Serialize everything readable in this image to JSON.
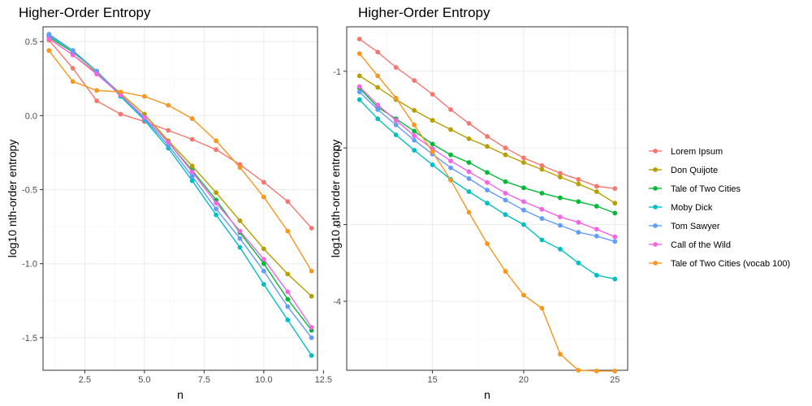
{
  "chart_data": [
    {
      "type": "line",
      "title": "Higher-Order Entropy",
      "xlabel": "n",
      "ylabel": "log10 nth-order entropy",
      "xlim": [
        0.75,
        12.25
      ],
      "ylim": [
        -1.72,
        0.6
      ],
      "xticks": [
        2.5,
        5.0,
        7.5,
        10.0,
        12.5
      ],
      "xtick_labels": [
        "2.5",
        "5.0",
        "7.5",
        "10.0",
        "12.5"
      ],
      "yticks": [
        0.5,
        0.0,
        -0.5,
        -1.0,
        -1.5
      ],
      "ytick_labels": [
        "0.5",
        "0.0",
        "-0.5",
        "-1.0",
        "-1.5"
      ],
      "grid": true,
      "x": [
        1,
        2,
        3,
        4,
        5,
        6,
        7,
        8,
        9,
        10,
        11,
        12
      ],
      "series": [
        {
          "name": "Lorem Ipsum",
          "values": [
            0.51,
            0.32,
            0.1,
            0.01,
            -0.04,
            -0.1,
            -0.16,
            -0.23,
            -0.33,
            -0.45,
            -0.58,
            -0.76
          ]
        },
        {
          "name": "Don Quijote",
          "values": [
            0.52,
            0.41,
            0.29,
            0.15,
            0.01,
            -0.17,
            -0.34,
            -0.52,
            -0.71,
            -0.9,
            -1.07,
            -1.22
          ]
        },
        {
          "name": "Tale of Two Cities",
          "values": [
            0.53,
            0.43,
            0.3,
            0.14,
            -0.01,
            -0.18,
            -0.37,
            -0.57,
            -0.79,
            -1.0,
            -1.24,
            -1.45
          ]
        },
        {
          "name": "Moby Dick",
          "values": [
            0.54,
            0.44,
            0.3,
            0.13,
            -0.03,
            -0.22,
            -0.44,
            -0.67,
            -0.89,
            -1.14,
            -1.38,
            -1.62
          ]
        },
        {
          "name": "Tom Sawyer",
          "values": [
            0.55,
            0.44,
            0.3,
            0.14,
            -0.02,
            -0.2,
            -0.41,
            -0.63,
            -0.83,
            -1.05,
            -1.29,
            -1.5
          ]
        },
        {
          "name": "Call of the Wild",
          "values": [
            0.52,
            0.41,
            0.28,
            0.14,
            -0.01,
            -0.18,
            -0.38,
            -0.59,
            -0.78,
            -0.97,
            -1.19,
            -1.43
          ]
        },
        {
          "name": "Tale of Two Cities (vocab 100)",
          "values": [
            0.44,
            0.23,
            0.17,
            0.16,
            0.13,
            0.07,
            -0.02,
            -0.17,
            -0.35,
            -0.55,
            -0.78,
            -1.05
          ]
        }
      ]
    },
    {
      "type": "line",
      "title": "Higher-Order Entropy",
      "xlabel": "n",
      "ylabel": "log10 nth-order entropy",
      "xlim": [
        10.3,
        25.7
      ],
      "ylim": [
        -4.9,
        -0.42
      ],
      "xticks": [
        15,
        20,
        25
      ],
      "xtick_labels": [
        "15",
        "20",
        "25"
      ],
      "yticks": [
        -1,
        -2,
        -3,
        -4
      ],
      "ytick_labels": [
        "-1",
        "-2",
        "-3",
        "-4"
      ],
      "grid": true,
      "x": [
        11,
        12,
        13,
        14,
        15,
        16,
        17,
        18,
        19,
        20,
        21,
        22,
        23,
        24,
        25
      ],
      "series": [
        {
          "name": "Lorem Ipsum",
          "values": [
            -0.58,
            -0.75,
            -0.95,
            -1.12,
            -1.3,
            -1.5,
            -1.68,
            -1.85,
            -2.0,
            -2.13,
            -2.23,
            -2.33,
            -2.41,
            -2.5,
            -2.53
          ]
        },
        {
          "name": "Don Quijote",
          "values": [
            -1.06,
            -1.21,
            -1.37,
            -1.51,
            -1.64,
            -1.76,
            -1.88,
            -1.98,
            -2.09,
            -2.19,
            -2.28,
            -2.38,
            -2.47,
            -2.57,
            -2.72
          ]
        },
        {
          "name": "Tale of Two Cities",
          "values": [
            -1.22,
            -1.47,
            -1.62,
            -1.78,
            -1.95,
            -2.09,
            -2.19,
            -2.32,
            -2.44,
            -2.52,
            -2.59,
            -2.65,
            -2.7,
            -2.76,
            -2.85
          ]
        },
        {
          "name": "Moby Dick",
          "values": [
            -1.37,
            -1.62,
            -1.83,
            -2.03,
            -2.22,
            -2.41,
            -2.57,
            -2.72,
            -2.87,
            -3.0,
            -3.2,
            -3.32,
            -3.5,
            -3.66,
            -3.71
          ]
        },
        {
          "name": "Tom Sawyer",
          "values": [
            -1.27,
            -1.5,
            -1.7,
            -1.9,
            -2.08,
            -2.26,
            -2.4,
            -2.55,
            -2.68,
            -2.81,
            -2.92,
            -3.01,
            -3.1,
            -3.15,
            -3.22
          ]
        },
        {
          "name": "Call of the Wild",
          "values": [
            -1.2,
            -1.44,
            -1.64,
            -1.84,
            -2.01,
            -2.17,
            -2.31,
            -2.45,
            -2.59,
            -2.7,
            -2.8,
            -2.9,
            -2.97,
            -3.06,
            -3.16
          ]
        },
        {
          "name": "Tale of Two Cities (vocab 100)",
          "values": [
            -0.77,
            -1.06,
            -1.35,
            -1.7,
            -2.05,
            -2.42,
            -2.84,
            -3.25,
            -3.61,
            -3.92,
            -4.09,
            -4.69,
            -4.9,
            -4.91,
            -4.91
          ]
        }
      ]
    }
  ],
  "legend": {
    "position": "right",
    "items": [
      {
        "label": "Lorem Ipsum",
        "color": "#F8766D"
      },
      {
        "label": "Don Quijote",
        "color": "#B79F00"
      },
      {
        "label": "Tale of Two Cities",
        "color": "#00BA38"
      },
      {
        "label": "Moby Dick",
        "color": "#00BFC4"
      },
      {
        "label": "Tom Sawyer",
        "color": "#619CFF"
      },
      {
        "label": "Call of the Wild",
        "color": "#F564E3"
      },
      {
        "label": "Tale of Two Cities (vocab 100)",
        "color": "#F8961E"
      }
    ]
  }
}
